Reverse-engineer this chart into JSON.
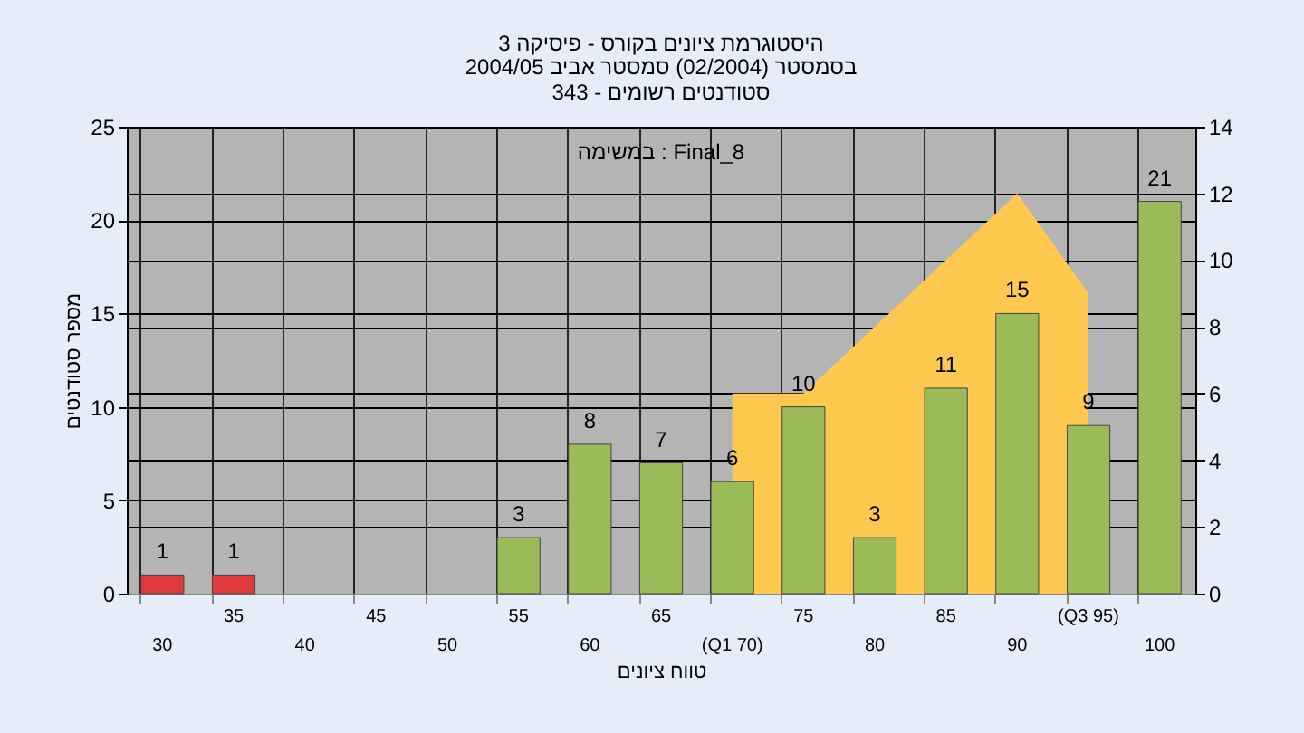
{
  "chart_data": {
    "type": "bar",
    "title": "היסטוגרמת ציונים בקורס - פיסיקה 3",
    "subtitle": [
      "בסמסטר  (02/2004)  סמסטר אביב 2004/05",
      "סטודנטים רשומים - 343"
    ],
    "xlabel": "טווח ציונים",
    "ylabel": "מספר סטודנטים",
    "annotations": [
      "במשימה : Final_8"
    ],
    "categories": [
      "30",
      "35",
      "40",
      "45",
      "50",
      "55",
      "60",
      "65",
      "(Q1 70)",
      "75",
      "80",
      "85",
      "90",
      "(Q3 95)",
      "100"
    ],
    "series": [
      {
        "values": [
          1,
          1,
          null,
          null,
          null,
          3,
          8,
          7,
          6,
          10,
          3,
          11,
          15,
          9,
          21
        ],
        "value_labels": [
          "1",
          "1",
          null,
          null,
          null,
          "3",
          "8",
          "7",
          "6",
          "10",
          "3",
          "11",
          "15",
          "9",
          "21"
        ],
        "colors": [
          "#e03a3a",
          "#e03a3a",
          "#9bbb59",
          "#9bbb59",
          "#9bbb59",
          "#9bbb59",
          "#9bbb59",
          "#9bbb59",
          "#9bbb59",
          "#9bbb59",
          "#9bbb59",
          "#9bbb59",
          "#9bbb59",
          "#9bbb59",
          "#9bbb59"
        ]
      },
      {
        "type": "area",
        "axis": "y2",
        "color": "#ffc94f",
        "values": [
          null,
          null,
          null,
          null,
          null,
          null,
          null,
          null,
          6,
          6,
          8,
          10,
          12,
          9,
          null
        ]
      }
    ],
    "ylim": [
      0,
      25
    ],
    "yticks": [
      0,
      5,
      10,
      15,
      20,
      25
    ],
    "y2lim": [
      0,
      14
    ],
    "y2ticks": [
      0,
      2,
      4,
      6,
      8,
      10,
      12,
      14
    ],
    "grid": true
  }
}
